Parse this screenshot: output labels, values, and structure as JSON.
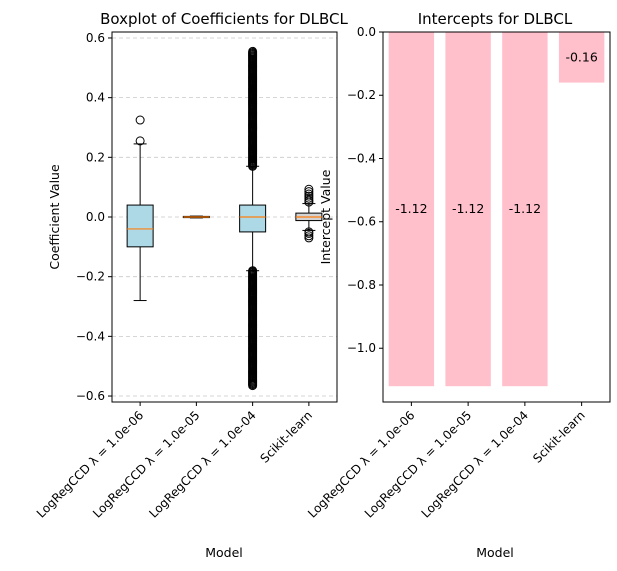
{
  "chart_data": [
    {
      "type": "boxplot",
      "title": "Boxplot of Coefficients for DLBCL",
      "xlabel": "Model",
      "ylabel": "Coefficient Value",
      "ylim": [
        -0.62,
        0.62
      ],
      "yticks": [
        "−0.6",
        "−0.4",
        "−0.2",
        "0.0",
        "0.2",
        "0.4",
        "0.6"
      ],
      "ytick_values": [
        -0.6,
        -0.4,
        -0.2,
        0.0,
        0.2,
        0.4,
        0.6
      ],
      "grid": "horizontal dashed",
      "colors": {
        "box": "#add8e6",
        "box_alt": "#d3d3d3",
        "median": "#ff7f0e",
        "grid": "#c8c8c8"
      },
      "categories": [
        "LogRegCCD λ = 1.0e-06",
        "LogRegCCD λ = 1.0e-05",
        "LogRegCCD λ = 1.0e-04",
        "Scikit-learn"
      ],
      "boxes": [
        {
          "q1": -0.1,
          "median": -0.04,
          "q3": 0.04,
          "whisker_low": -0.28,
          "whisker_high": 0.245,
          "fliers": [
            0.255,
            0.325
          ]
        },
        {
          "q1": -0.002,
          "median": 0.0,
          "q3": 0.002,
          "whisker_low": -0.003,
          "whisker_high": 0.003,
          "fliers": []
        },
        {
          "q1": -0.05,
          "median": 0.0,
          "q3": 0.04,
          "whisker_low": -0.18,
          "whisker_high": 0.17,
          "flier_range_low": [
            -0.565,
            -0.18
          ],
          "flier_range_high": [
            0.17,
            0.555
          ]
        },
        {
          "q1": -0.012,
          "median": 0.0,
          "q3": 0.013,
          "whisker_low": -0.045,
          "whisker_high": 0.045,
          "fliers": [
            -0.07,
            -0.063,
            -0.055,
            -0.05,
            0.05,
            0.056,
            0.063,
            0.07,
            0.077,
            0.085,
            0.093
          ]
        }
      ]
    },
    {
      "type": "bar",
      "title": "Intercepts for DLBCL",
      "xlabel": "Model",
      "ylabel": "Intercept Value",
      "ylim": [
        -1.17,
        0.0
      ],
      "yticks": [
        "−1.0",
        "−0.8",
        "−0.6",
        "−0.4",
        "−0.2",
        "0.0"
      ],
      "ytick_values": [
        -1.0,
        -0.8,
        -0.6,
        -0.4,
        -0.2,
        0.0
      ],
      "bar_color": "#ffc0cb",
      "categories": [
        "LogRegCCD λ = 1.0e-06",
        "LogRegCCD λ = 1.0e-05",
        "LogRegCCD λ = 1.0e-04",
        "Scikit-learn"
      ],
      "values": [
        -1.12,
        -1.12,
        -1.12,
        -0.16
      ],
      "value_labels": [
        "-1.12",
        "-1.12",
        "-1.12",
        "-0.16"
      ]
    }
  ]
}
